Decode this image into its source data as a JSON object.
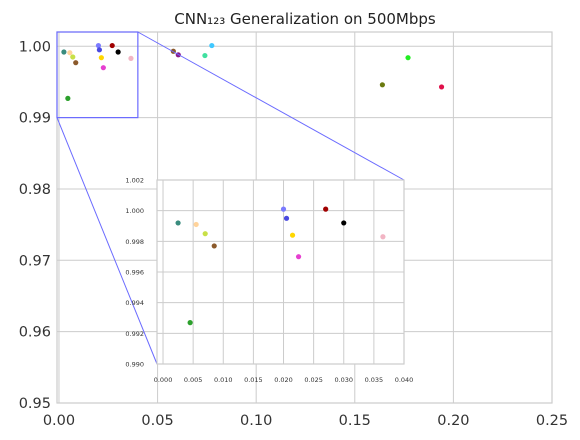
{
  "chart_data": {
    "type": "scatter",
    "title": "CNN₁₂₃ Generalization on 500Mbps",
    "xlabel": "",
    "ylabel": "",
    "xlim": [
      -0.001,
      0.25
    ],
    "ylim": [
      0.95,
      1.002
    ],
    "x_ticks": [
      "0.00",
      "0.05",
      "0.10",
      "0.15",
      "0.20",
      "0.25"
    ],
    "y_ticks": [
      "0.95",
      "0.96",
      "0.97",
      "0.98",
      "0.99",
      "1.00"
    ],
    "grid": true,
    "points": [
      {
        "x": 0.0025,
        "y": 0.9992,
        "color": "#3a8c7e"
      },
      {
        "x": 0.0055,
        "y": 0.9991,
        "color": "#ffd39b"
      },
      {
        "x": 0.007,
        "y": 0.9985,
        "color": "#c8e046"
      },
      {
        "x": 0.0085,
        "y": 0.9977,
        "color": "#8b5a2b"
      },
      {
        "x": 0.0045,
        "y": 0.9927,
        "color": "#2ca02c"
      },
      {
        "x": 0.02,
        "y": 1.0001,
        "color": "#7b7bff"
      },
      {
        "x": 0.0205,
        "y": 0.9995,
        "color": "#4a4ae0"
      },
      {
        "x": 0.0215,
        "y": 0.9984,
        "color": "#ffd700"
      },
      {
        "x": 0.0225,
        "y": 0.997,
        "color": "#e63fd0"
      },
      {
        "x": 0.027,
        "y": 1.0001,
        "color": "#a00000"
      },
      {
        "x": 0.03,
        "y": 0.9992,
        "color": "#000000"
      },
      {
        "x": 0.0365,
        "y": 0.9983,
        "color": "#f2b5c4"
      },
      {
        "x": 0.058,
        "y": 0.9993,
        "color": "#8b5a2b"
      },
      {
        "x": 0.0605,
        "y": 0.9988,
        "color": "#8b1a8b"
      },
      {
        "x": 0.074,
        "y": 0.9987,
        "color": "#40e0a0"
      },
      {
        "x": 0.0775,
        "y": 1.0001,
        "color": "#40c8ff"
      },
      {
        "x": 0.164,
        "y": 0.9946,
        "color": "#6b7a10"
      },
      {
        "x": 0.177,
        "y": 0.9984,
        "color": "#22ee22"
      },
      {
        "x": 0.194,
        "y": 0.9943,
        "color": "#e0104a"
      }
    ],
    "inset": {
      "xlim": [
        -0.001,
        0.04
      ],
      "ylim": [
        0.99,
        1.002
      ],
      "x_ticks": [
        "0.000",
        "0.005",
        "0.010",
        "0.015",
        "0.020",
        "0.025",
        "0.030",
        "0.035",
        "0.040"
      ],
      "y_ticks": [
        "0.990",
        "0.992",
        "0.994",
        "0.996",
        "0.998",
        "1.000",
        "1.002"
      ]
    }
  }
}
